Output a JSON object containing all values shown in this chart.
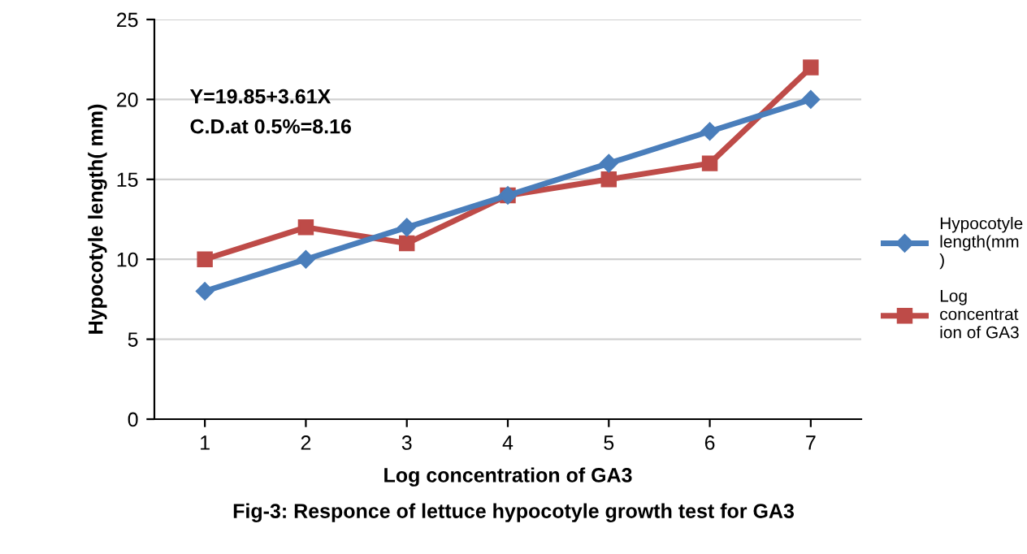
{
  "chart_data": {
    "type": "line",
    "xlabel": "Log concentration of GA3",
    "ylabel": "Hypocotyle length( mm)",
    "categories": [
      "1",
      "2",
      "3",
      "4",
      "5",
      "6",
      "7"
    ],
    "series": [
      {
        "name": "Hypocotyle\nlength(mm\n)",
        "color": "#4a7ebb",
        "marker": "diamond",
        "values": [
          8,
          10,
          12,
          14,
          16,
          18,
          20
        ]
      },
      {
        "name": "Log\nconcentrat\nion of GA3",
        "color": "#be4b48",
        "marker": "square",
        "values": [
          10,
          12,
          11,
          14,
          15,
          16,
          22
        ]
      }
    ],
    "ylim": [
      0,
      25
    ],
    "yticks": [
      0,
      5,
      10,
      15,
      20,
      25
    ],
    "grid": "y",
    "legend": "right",
    "line_style": "solid",
    "annotations": [
      "Y=19.85+3.61X",
      "C.D.at 0.5%=8.16",
      "Fig-3: Responce of lettuce hypocotyle growth test for GA3"
    ]
  }
}
